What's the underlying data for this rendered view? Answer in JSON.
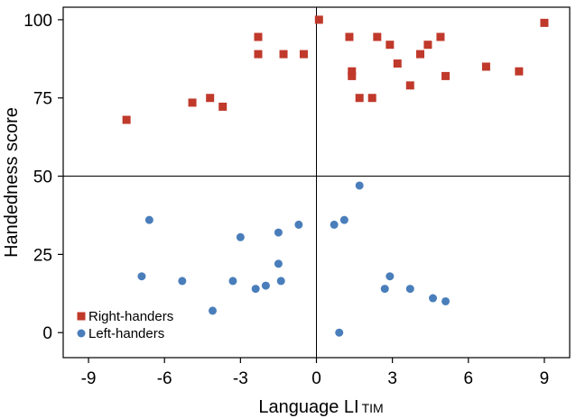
{
  "chart_data": {
    "type": "scatter",
    "xlabel": "Language LI",
    "xlabel_subscript": "TIM",
    "ylabel": "Handedness score",
    "xlim": [
      -10,
      10
    ],
    "ylim": [
      -8,
      104
    ],
    "xticks": [
      -9,
      -6,
      -3,
      0,
      3,
      6,
      9
    ],
    "xtick_labels": [
      "-9",
      "-6",
      "-3",
      "0",
      "3",
      "6",
      "9"
    ],
    "yticks": [
      0,
      25,
      50,
      75,
      100
    ],
    "ytick_labels": [
      "0",
      "25",
      "50",
      "75",
      "100"
    ],
    "reference_lines": {
      "x": 0,
      "y": 50
    },
    "grid": false,
    "legend_position": "bottom-left",
    "series": [
      {
        "name": "Right-handers",
        "marker": "square",
        "color": "#C0392B",
        "points": [
          [
            -7.5,
            68
          ],
          [
            -4.9,
            73.5
          ],
          [
            -4.2,
            75
          ],
          [
            -3.7,
            72.2
          ],
          [
            -2.3,
            94.5
          ],
          [
            -2.3,
            89
          ],
          [
            -1.3,
            89
          ],
          [
            -0.5,
            89
          ],
          [
            0.1,
            100
          ],
          [
            1.3,
            94.5
          ],
          [
            1.4,
            83.5
          ],
          [
            1.4,
            82
          ],
          [
            1.7,
            75
          ],
          [
            2.2,
            75
          ],
          [
            2.4,
            94.5
          ],
          [
            2.9,
            92
          ],
          [
            3.2,
            86
          ],
          [
            3.7,
            79
          ],
          [
            4.1,
            89
          ],
          [
            4.4,
            92
          ],
          [
            4.9,
            94.5
          ],
          [
            5.1,
            82
          ],
          [
            6.7,
            85
          ],
          [
            8.0,
            83.5
          ],
          [
            9.0,
            99
          ]
        ]
      },
      {
        "name": "Left-handers",
        "marker": "circle",
        "color": "#4A7EBB",
        "points": [
          [
            -6.9,
            18
          ],
          [
            -6.6,
            36
          ],
          [
            -5.3,
            16.5
          ],
          [
            -4.1,
            7
          ],
          [
            -3.3,
            16.5
          ],
          [
            -3.0,
            30.5
          ],
          [
            -2.4,
            14
          ],
          [
            -2.0,
            15
          ],
          [
            -1.5,
            22
          ],
          [
            -1.5,
            32
          ],
          [
            -1.4,
            16.5
          ],
          [
            -0.7,
            34.5
          ],
          [
            0.7,
            34.5
          ],
          [
            0.9,
            0
          ],
          [
            1.1,
            36
          ],
          [
            1.7,
            47
          ],
          [
            2.7,
            14
          ],
          [
            2.9,
            18
          ],
          [
            3.7,
            14
          ],
          [
            4.6,
            11
          ],
          [
            5.1,
            10
          ]
        ]
      }
    ]
  },
  "colors": {
    "right_handers": "#C0392B",
    "left_handers": "#4A7EBB",
    "axis": "#000000",
    "reference_line": "#000000"
  }
}
